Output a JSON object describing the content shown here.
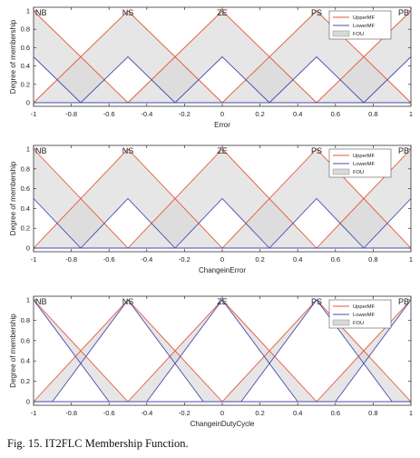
{
  "caption": "Fig. 15.  IT2FLC Membership Function.",
  "colors": {
    "upper": "#e8563a",
    "lower": "#4a4ab0",
    "fou": "#d9d9d9",
    "fou_edge": "#8c8c8c"
  },
  "chart_data": [
    {
      "type": "line",
      "xlabel": "Error",
      "ylabel": "Degree of membership",
      "xlim": [
        -1,
        1
      ],
      "ylim": [
        0,
        1
      ],
      "xticks": [
        "-1",
        "-0.8",
        "-0.6",
        "-0.4",
        "-0.2",
        "0",
        "0.2",
        "0.4",
        "0.6",
        "0.8",
        "1"
      ],
      "yticks": [
        "0",
        "0.2",
        "0.4",
        "0.6",
        "0.8",
        "1"
      ],
      "legend": [
        "UpperMF",
        "LowerMF",
        "FOU"
      ],
      "legend_position": "top-right",
      "mf_labels": [
        {
          "text": "NB",
          "x": -1
        },
        {
          "text": "NS",
          "x": -0.5
        },
        {
          "text": "ZE",
          "x": 0
        },
        {
          "text": "PS",
          "x": 0.5
        },
        {
          "text": "PB",
          "x": 1
        }
      ],
      "series": [
        {
          "name": "UpperMF",
          "lines": [
            [
              [
                -1,
                1
              ],
              [
                -0.5,
                0
              ]
            ],
            [
              [
                -1,
                0
              ],
              [
                -0.5,
                1
              ],
              [
                0,
                0
              ]
            ],
            [
              [
                -0.5,
                0
              ],
              [
                0,
                1
              ],
              [
                0.5,
                0
              ]
            ],
            [
              [
                0,
                0
              ],
              [
                0.5,
                1
              ],
              [
                1,
                0
              ]
            ],
            [
              [
                0.5,
                0
              ],
              [
                1,
                1
              ]
            ]
          ]
        },
        {
          "name": "LowerMF",
          "lines": [
            [
              [
                -1,
                0.5
              ],
              [
                -0.75,
                0
              ]
            ],
            [
              [
                -0.75,
                0
              ],
              [
                -0.5,
                0.5
              ],
              [
                -0.25,
                0
              ]
            ],
            [
              [
                -0.25,
                0
              ],
              [
                0,
                0.5
              ],
              [
                0.25,
                0
              ]
            ],
            [
              [
                0.25,
                0
              ],
              [
                0.5,
                0.5
              ],
              [
                0.75,
                0
              ]
            ],
            [
              [
                0.75,
                0
              ],
              [
                1,
                0.5
              ]
            ],
            [
              [
                -1,
                0
              ],
              [
                1,
                0
              ]
            ]
          ]
        }
      ]
    },
    {
      "type": "line",
      "xlabel": "ChangeinError",
      "ylabel": "Degree of membership",
      "xlim": [
        -1,
        1
      ],
      "ylim": [
        0,
        1
      ],
      "xticks": [
        "-1",
        "-0.8",
        "-0.6",
        "-0.4",
        "-0.2",
        "0",
        "0.2",
        "0.4",
        "0.6",
        "0.8",
        "1"
      ],
      "yticks": [
        "0",
        "0.2",
        "0.4",
        "0.6",
        "0.8",
        "1"
      ],
      "legend": [
        "UpperMF",
        "LowerMF",
        "FOU"
      ],
      "legend_position": "top-right",
      "mf_labels": [
        {
          "text": "NB",
          "x": -1
        },
        {
          "text": "NS",
          "x": -0.5
        },
        {
          "text": "ZE",
          "x": 0
        },
        {
          "text": "PS",
          "x": 0.5
        },
        {
          "text": "PB",
          "x": 1
        }
      ],
      "series": [
        {
          "name": "UpperMF",
          "lines": [
            [
              [
                -1,
                1
              ],
              [
                -0.5,
                0
              ]
            ],
            [
              [
                -1,
                0
              ],
              [
                -0.5,
                1
              ],
              [
                0,
                0
              ]
            ],
            [
              [
                -0.5,
                0
              ],
              [
                0,
                1
              ],
              [
                0.5,
                0
              ]
            ],
            [
              [
                0,
                0
              ],
              [
                0.5,
                1
              ],
              [
                1,
                0
              ]
            ],
            [
              [
                0.5,
                0
              ],
              [
                1,
                1
              ]
            ]
          ]
        },
        {
          "name": "LowerMF",
          "lines": [
            [
              [
                -1,
                0.5
              ],
              [
                -0.75,
                0
              ]
            ],
            [
              [
                -0.75,
                0
              ],
              [
                -0.5,
                0.5
              ],
              [
                -0.25,
                0
              ]
            ],
            [
              [
                -0.25,
                0
              ],
              [
                0,
                0.5
              ],
              [
                0.25,
                0
              ]
            ],
            [
              [
                0.25,
                0
              ],
              [
                0.5,
                0.5
              ],
              [
                0.75,
                0
              ]
            ],
            [
              [
                0.75,
                0
              ],
              [
                1,
                0.5
              ]
            ],
            [
              [
                -1,
                0
              ],
              [
                1,
                0
              ]
            ]
          ]
        }
      ]
    },
    {
      "type": "line",
      "xlabel": "ChangeinDutyCycle",
      "ylabel": "Degree of membership",
      "xlim": [
        -1,
        1
      ],
      "ylim": [
        0,
        1
      ],
      "xticks": [
        "-1",
        "-0.8",
        "-0.6",
        "-0.4",
        "-0.2",
        "0",
        "0.2",
        "0.4",
        "0.6",
        "0.8",
        "1"
      ],
      "yticks": [
        "0",
        "0.2",
        "0.4",
        "0.6",
        "0.8",
        "1"
      ],
      "legend": [
        "UpperMF",
        "LowerMF",
        "FOU"
      ],
      "legend_position": "top-right",
      "mf_labels": [
        {
          "text": "NB",
          "x": -1
        },
        {
          "text": "NS",
          "x": -0.5
        },
        {
          "text": "ZE",
          "x": 0
        },
        {
          "text": "PS",
          "x": 0.5
        },
        {
          "text": "PB",
          "x": 1
        }
      ],
      "series": [
        {
          "name": "UpperMF",
          "lines": [
            [
              [
                -1,
                1
              ],
              [
                -0.5,
                0
              ]
            ],
            [
              [
                -1,
                0
              ],
              [
                -0.5,
                1
              ],
              [
                0,
                0
              ]
            ],
            [
              [
                -0.5,
                0
              ],
              [
                0,
                1
              ],
              [
                0.5,
                0
              ]
            ],
            [
              [
                0,
                0
              ],
              [
                0.5,
                1
              ],
              [
                1,
                0
              ]
            ],
            [
              [
                0.5,
                0
              ],
              [
                1,
                1
              ]
            ]
          ]
        },
        {
          "name": "LowerMF",
          "lines": [
            [
              [
                -1,
                1
              ],
              [
                -0.6,
                0
              ]
            ],
            [
              [
                -0.9,
                0
              ],
              [
                -0.5,
                1
              ],
              [
                -0.1,
                0
              ]
            ],
            [
              [
                -0.4,
                0
              ],
              [
                0,
                1
              ],
              [
                0.4,
                0
              ]
            ],
            [
              [
                0.1,
                0
              ],
              [
                0.5,
                1
              ],
              [
                0.9,
                0
              ]
            ],
            [
              [
                0.6,
                0
              ],
              [
                1,
                1
              ]
            ],
            [
              [
                -1,
                0
              ],
              [
                1,
                0
              ]
            ]
          ]
        }
      ]
    }
  ]
}
